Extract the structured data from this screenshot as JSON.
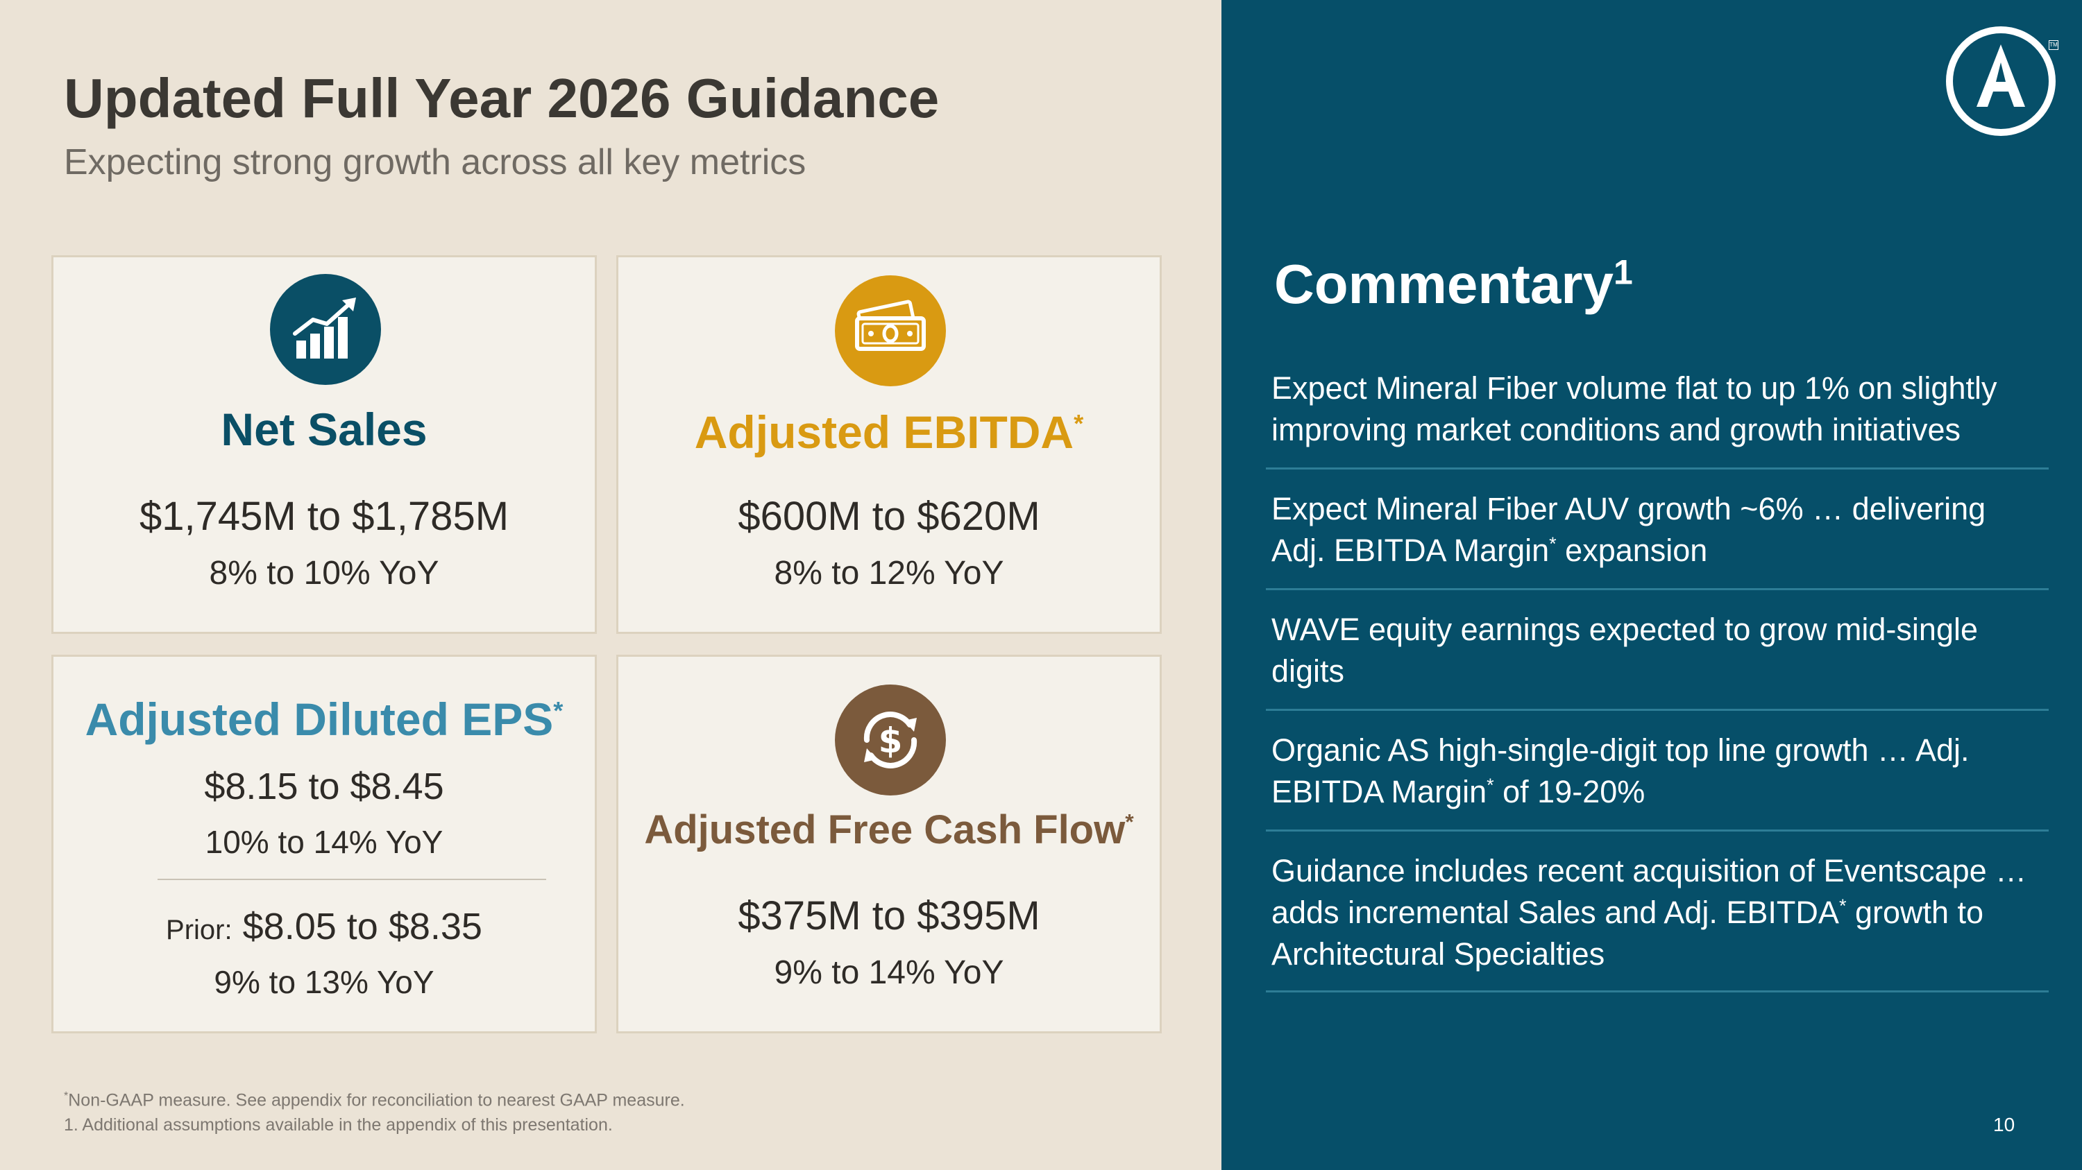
{
  "header": {
    "title": "Updated Full Year 2026 Guidance",
    "subtitle": "Expecting strong growth across all key metrics"
  },
  "cards": {
    "net_sales": {
      "title": "Net Sales",
      "range": "$1,745M to $1,785M",
      "yoy": "8% to 10% YoY",
      "icon": "growth-chart-icon",
      "color": "#0a4f66"
    },
    "ebitda": {
      "title": "Adjusted EBITDA",
      "asterisk": "*",
      "range": "$600M to $620M",
      "yoy": "8% to 12% YoY",
      "icon": "cash-bills-icon",
      "color": "#d99a12"
    },
    "eps": {
      "title": "Adjusted Diluted EPS",
      "asterisk": "*",
      "range": "$8.15 to $8.45",
      "yoy": "10% to 14% YoY",
      "prior_label": "Prior:",
      "prior_range": "$8.05 to $8.35",
      "prior_yoy": "9% to 13% YoY",
      "color": "#3a8bab"
    },
    "fcf": {
      "title": "Adjusted Free Cash Flow",
      "asterisk": "*",
      "range": "$375M to $395M",
      "yoy": "9% to 14% YoY",
      "icon": "dollar-cycle-icon",
      "color": "#7b5a3c"
    }
  },
  "footnotes": {
    "line1_mark": "*",
    "line1": "Non-GAAP measure. See appendix for reconciliation to nearest GAAP measure.",
    "line2": "1. Additional assumptions available in the appendix of this presentation."
  },
  "commentary": {
    "title": "Commentary",
    "title_sup": "1",
    "items": [
      {
        "text": "Expect Mineral Fiber volume flat to up 1% on slightly improving market conditions and growth initiatives"
      },
      {
        "pre": "Expect Mineral Fiber AUV growth ~6% … delivering Adj. EBITDA Margin",
        "sup": "*",
        "post": " expansion"
      },
      {
        "text": "WAVE equity earnings expected to grow mid-single digits"
      },
      {
        "pre": "Organic AS high-single-digit top line growth … Adj. EBITDA Margin",
        "sup": "*",
        "post": " of 19-20%"
      },
      {
        "pre": "Guidance includes recent acquisition of Eventscape … adds incremental Sales and Adj. EBITDA",
        "sup": "*",
        "post": " growth to Architectural Specialties"
      }
    ]
  },
  "page_number": "10",
  "logo": {
    "icon": "armstrong-a-logo-icon",
    "tm": "TM"
  }
}
